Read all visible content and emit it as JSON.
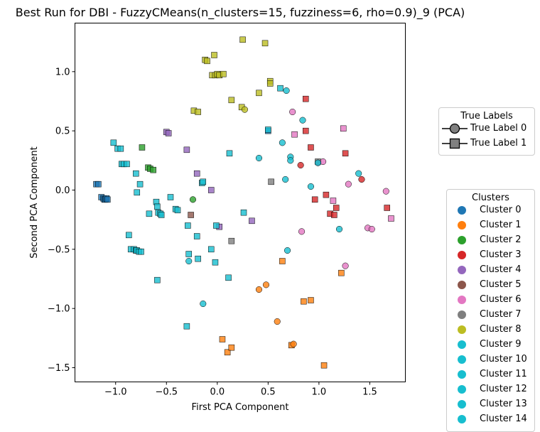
{
  "chart_data": {
    "type": "scatter",
    "title": "Best Run for DBI - FuzzyCMeans(n_clusters=15, fuzziness=6, rho=0.9)_9 (PCA)",
    "xlabel": "First PCA Component",
    "ylabel": "Second PCA Component",
    "xlim": [
      -1.4,
      1.85
    ],
    "ylim": [
      -1.62,
      1.41
    ],
    "xticks": [
      -1.0,
      -0.5,
      0.0,
      0.5,
      1.0,
      1.5
    ],
    "xtick_labels": [
      "−1.0",
      "−0.5",
      "0.0",
      "0.5",
      "1.0",
      "1.5"
    ],
    "yticks": [
      -1.5,
      -1.0,
      -0.5,
      0.0,
      0.5,
      1.0
    ],
    "ytick_labels": [
      "−1.5",
      "−1.0",
      "−0.5",
      "0.0",
      "0.5",
      "1.0"
    ],
    "grid": false,
    "true_labels_legend": {
      "title": "True Labels",
      "placement": "right",
      "entries": [
        {
          "label": "True Label 0",
          "marker": "circle"
        },
        {
          "label": "True Label 1",
          "marker": "square"
        }
      ]
    },
    "clusters_legend": {
      "title": "Clusters",
      "placement": "lower-right",
      "entries": [
        {
          "label": "Cluster 0",
          "color": "#1f77b4"
        },
        {
          "label": "Cluster 1",
          "color": "#ff7f0e"
        },
        {
          "label": "Cluster 2",
          "color": "#2ca02c"
        },
        {
          "label": "Cluster 3",
          "color": "#d62728"
        },
        {
          "label": "Cluster 4",
          "color": "#9467bd"
        },
        {
          "label": "Cluster 5",
          "color": "#8c564b"
        },
        {
          "label": "Cluster 6",
          "color": "#e377c2"
        },
        {
          "label": "Cluster 7",
          "color": "#7f7f7f"
        },
        {
          "label": "Cluster 8",
          "color": "#bcbd22"
        },
        {
          "label": "Cluster 9",
          "color": "#17becf"
        },
        {
          "label": "Cluster 10",
          "color": "#17becf"
        },
        {
          "label": "Cluster 11",
          "color": "#17becf"
        },
        {
          "label": "Cluster 12",
          "color": "#17becf"
        },
        {
          "label": "Cluster 13",
          "color": "#17becf"
        },
        {
          "label": "Cluster 14",
          "color": "#17becf"
        }
      ]
    },
    "series": [
      {
        "cluster": 0,
        "true_label": 1,
        "points": [
          [
            -1.19,
            0.05
          ],
          [
            -1.17,
            0.05
          ],
          [
            -1.14,
            -0.06
          ],
          [
            -1.12,
            -0.07
          ],
          [
            -1.11,
            -0.08
          ],
          [
            -1.1,
            -0.08
          ],
          [
            -1.09,
            -0.07
          ],
          [
            -1.08,
            -0.08
          ],
          [
            0.5,
            0.5
          ]
        ]
      },
      {
        "cluster": 1,
        "true_label": 1,
        "points": [
          [
            0.05,
            -1.26
          ],
          [
            0.1,
            -1.37
          ],
          [
            0.14,
            -1.33
          ],
          [
            0.64,
            -0.6
          ],
          [
            0.73,
            -1.31
          ],
          [
            0.85,
            -0.94
          ],
          [
            0.92,
            -0.93
          ],
          [
            1.05,
            -1.48
          ],
          [
            1.22,
            -0.7
          ]
        ]
      },
      {
        "cluster": 1,
        "true_label": 0,
        "points": [
          [
            0.41,
            -0.84
          ],
          [
            0.48,
            -0.8
          ],
          [
            0.59,
            -1.11
          ],
          [
            0.75,
            -1.3
          ]
        ]
      },
      {
        "cluster": 2,
        "true_label": 1,
        "points": [
          [
            -0.74,
            0.36
          ],
          [
            -0.68,
            0.19
          ],
          [
            -0.66,
            0.18
          ],
          [
            -0.63,
            0.17
          ]
        ]
      },
      {
        "cluster": 2,
        "true_label": 0,
        "points": [
          [
            -0.24,
            -0.08
          ]
        ]
      },
      {
        "cluster": 3,
        "true_label": 1,
        "points": [
          [
            0.87,
            0.77
          ],
          [
            0.87,
            0.5
          ],
          [
            0.92,
            0.36
          ],
          [
            0.96,
            -0.08
          ],
          [
            1.07,
            -0.04
          ],
          [
            1.11,
            -0.2
          ],
          [
            1.15,
            -0.21
          ],
          [
            1.17,
            -0.15
          ],
          [
            1.26,
            0.31
          ],
          [
            1.67,
            -0.15
          ]
        ]
      },
      {
        "cluster": 3,
        "true_label": 0,
        "points": [
          [
            0.82,
            0.21
          ],
          [
            1.42,
            0.09
          ]
        ]
      },
      {
        "cluster": 4,
        "true_label": 1,
        "points": [
          [
            -0.5,
            0.49
          ],
          [
            -0.48,
            0.48
          ],
          [
            -0.3,
            0.34
          ],
          [
            -0.2,
            0.14
          ],
          [
            -0.06,
            0.0
          ],
          [
            0.02,
            -0.31
          ],
          [
            0.34,
            -0.26
          ]
        ]
      },
      {
        "cluster": 5,
        "true_label": 1,
        "points": [
          [
            -0.26,
            -0.21
          ]
        ]
      },
      {
        "cluster": 6,
        "true_label": 1,
        "points": [
          [
            0.76,
            0.47
          ],
          [
            1.14,
            -0.09
          ],
          [
            1.24,
            0.52
          ],
          [
            1.71,
            -0.24
          ]
        ]
      },
      {
        "cluster": 6,
        "true_label": 0,
        "points": [
          [
            0.74,
            0.66
          ],
          [
            0.83,
            -0.35
          ],
          [
            0.99,
            0.23
          ],
          [
            1.04,
            0.24
          ],
          [
            1.26,
            -0.64
          ],
          [
            1.29,
            0.05
          ],
          [
            1.48,
            -0.32
          ],
          [
            1.52,
            -0.33
          ],
          [
            1.66,
            -0.01
          ]
        ]
      },
      {
        "cluster": 7,
        "true_label": 1,
        "points": [
          [
            0.14,
            -0.43
          ],
          [
            0.53,
            0.07
          ],
          [
            0.99,
            0.24
          ]
        ]
      },
      {
        "cluster": 8,
        "true_label": 1,
        "points": [
          [
            -0.23,
            0.67
          ],
          [
            -0.19,
            0.66
          ],
          [
            -0.12,
            1.1
          ],
          [
            -0.1,
            1.09
          ],
          [
            -0.05,
            0.97
          ],
          [
            -0.02,
            0.97
          ],
          [
            0.0,
            0.98
          ],
          [
            0.02,
            0.97
          ],
          [
            0.06,
            0.98
          ],
          [
            -0.03,
            1.14
          ],
          [
            0.14,
            0.76
          ],
          [
            0.24,
            0.7
          ],
          [
            0.25,
            1.27
          ],
          [
            0.41,
            0.82
          ],
          [
            0.47,
            1.24
          ],
          [
            0.52,
            0.92
          ],
          [
            0.52,
            0.9
          ]
        ]
      },
      {
        "cluster": 8,
        "true_label": 0,
        "points": [
          [
            0.27,
            0.68
          ]
        ]
      },
      {
        "cluster": 9,
        "true_label": 1,
        "points": [
          [
            -1.02,
            0.4
          ],
          [
            -0.98,
            0.35
          ],
          [
            -0.95,
            0.35
          ],
          [
            -0.94,
            0.22
          ],
          [
            -0.92,
            0.22
          ],
          [
            -0.89,
            0.22
          ],
          [
            -0.87,
            -0.38
          ],
          [
            -0.85,
            -0.5
          ],
          [
            -0.82,
            -0.5
          ],
          [
            -0.8,
            -0.51
          ],
          [
            -0.79,
            -0.51
          ],
          [
            -0.77,
            -0.52
          ],
          [
            -0.75,
            -0.52
          ],
          [
            -0.8,
            0.14
          ],
          [
            -0.79,
            -0.02
          ],
          [
            -0.76,
            0.05
          ],
          [
            -0.67,
            -0.2
          ],
          [
            -0.6,
            -0.1
          ],
          [
            -0.59,
            -0.14
          ],
          [
            -0.58,
            -0.19
          ],
          [
            -0.56,
            -0.2
          ],
          [
            -0.55,
            -0.21
          ],
          [
            -0.46,
            -0.06
          ],
          [
            -0.41,
            -0.16
          ],
          [
            -0.39,
            -0.17
          ],
          [
            -0.29,
            -0.3
          ],
          [
            -0.28,
            -0.54
          ],
          [
            -0.2,
            -0.39
          ],
          [
            -0.19,
            -0.58
          ],
          [
            -0.15,
            0.06
          ],
          [
            -0.14,
            0.07
          ],
          [
            -0.06,
            -0.5
          ],
          [
            -0.02,
            -0.61
          ],
          [
            -0.01,
            -0.3
          ],
          [
            0.11,
            -0.74
          ],
          [
            0.12,
            0.31
          ],
          [
            0.26,
            -0.19
          ],
          [
            0.5,
            0.51
          ],
          [
            0.62,
            0.86
          ],
          [
            -0.59,
            -0.76
          ],
          [
            -0.3,
            -1.15
          ]
        ]
      },
      {
        "cluster": 9,
        "true_label": 0,
        "points": [
          [
            -0.28,
            -0.6
          ],
          [
            -0.14,
            -0.96
          ],
          [
            0.41,
            0.27
          ],
          [
            0.64,
            0.4
          ],
          [
            0.67,
            0.09
          ],
          [
            0.69,
            -0.51
          ],
          [
            0.68,
            0.84
          ],
          [
            0.72,
            0.28
          ],
          [
            0.72,
            0.25
          ],
          [
            0.84,
            0.59
          ],
          [
            0.92,
            0.03
          ],
          [
            0.99,
            0.23
          ],
          [
            1.2,
            -0.33
          ],
          [
            1.39,
            0.14
          ]
        ]
      }
    ]
  }
}
